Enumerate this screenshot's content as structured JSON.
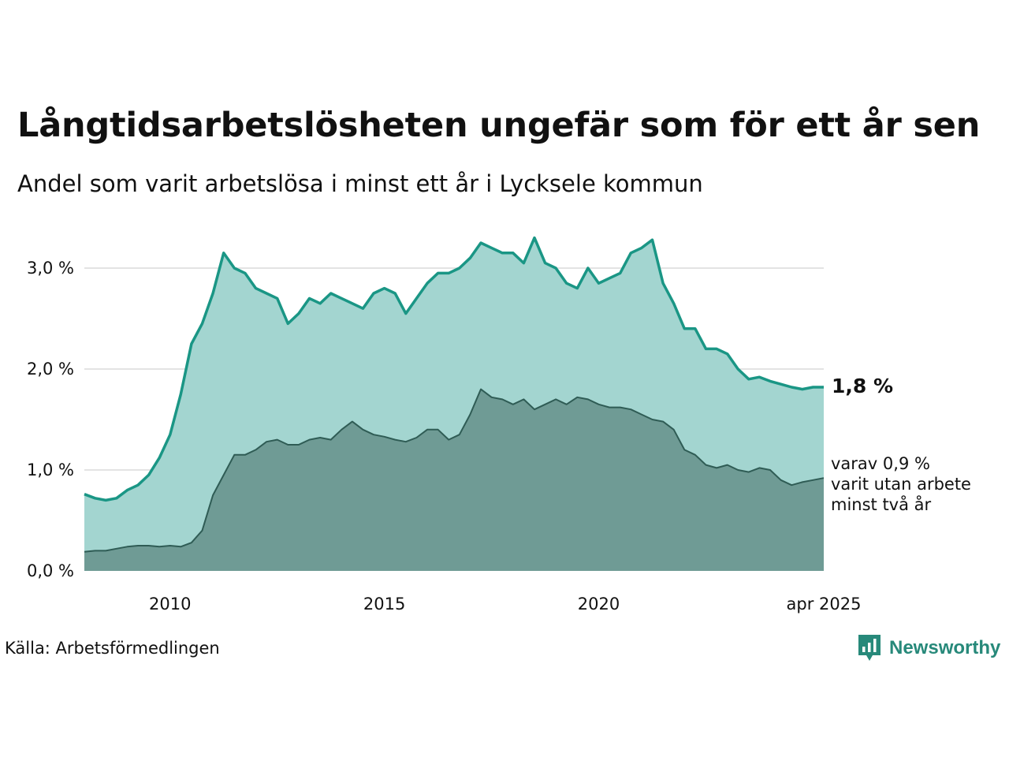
{
  "chart_data": {
    "type": "area",
    "title": "Långtidsarbetslösheten ungefär som för ett år sen",
    "subtitle": "Andel som varit arbetslösa i minst ett år i Lycksele kommun",
    "x_tick_labels": [
      "2010",
      "2015",
      "2020",
      "apr 2025"
    ],
    "y_tick_labels": [
      "0,0 %",
      "1,0 %",
      "2,0 %",
      "3,0 %"
    ],
    "y_ticks": [
      0,
      1,
      2,
      3
    ],
    "ylim": [
      0,
      3.4
    ],
    "x_range": [
      "2008-01",
      "2025-04"
    ],
    "grid": true,
    "unit": "%",
    "series": [
      {
        "key": "total",
        "color_line": "#1a9685",
        "color_fill": "#a3d5d0",
        "points": [
          [
            "2008-01",
            0.76
          ],
          [
            "2008-04",
            0.72
          ],
          [
            "2008-07",
            0.7
          ],
          [
            "2008-10",
            0.72
          ],
          [
            "2009-01",
            0.8
          ],
          [
            "2009-04",
            0.85
          ],
          [
            "2009-07",
            0.95
          ],
          [
            "2009-10",
            1.12
          ],
          [
            "2010-01",
            1.35
          ],
          [
            "2010-04",
            1.75
          ],
          [
            "2010-07",
            2.25
          ],
          [
            "2010-10",
            2.45
          ],
          [
            "2011-01",
            2.75
          ],
          [
            "2011-04",
            3.15
          ],
          [
            "2011-07",
            3.0
          ],
          [
            "2011-10",
            2.95
          ],
          [
            "2012-01",
            2.8
          ],
          [
            "2012-04",
            2.75
          ],
          [
            "2012-07",
            2.7
          ],
          [
            "2012-10",
            2.45
          ],
          [
            "2013-01",
            2.55
          ],
          [
            "2013-04",
            2.7
          ],
          [
            "2013-07",
            2.65
          ],
          [
            "2013-10",
            2.75
          ],
          [
            "2014-01",
            2.7
          ],
          [
            "2014-04",
            2.65
          ],
          [
            "2014-07",
            2.6
          ],
          [
            "2014-10",
            2.75
          ],
          [
            "2015-01",
            2.8
          ],
          [
            "2015-04",
            2.75
          ],
          [
            "2015-07",
            2.55
          ],
          [
            "2015-10",
            2.7
          ],
          [
            "2016-01",
            2.85
          ],
          [
            "2016-04",
            2.95
          ],
          [
            "2016-07",
            2.95
          ],
          [
            "2016-10",
            3.0
          ],
          [
            "2017-01",
            3.1
          ],
          [
            "2017-04",
            3.25
          ],
          [
            "2017-07",
            3.2
          ],
          [
            "2017-10",
            3.15
          ],
          [
            "2018-01",
            3.15
          ],
          [
            "2018-04",
            3.05
          ],
          [
            "2018-07",
            3.3
          ],
          [
            "2018-10",
            3.05
          ],
          [
            "2019-01",
            3.0
          ],
          [
            "2019-04",
            2.85
          ],
          [
            "2019-07",
            2.8
          ],
          [
            "2019-10",
            3.0
          ],
          [
            "2020-01",
            2.85
          ],
          [
            "2020-04",
            2.9
          ],
          [
            "2020-07",
            2.95
          ],
          [
            "2020-10",
            3.15
          ],
          [
            "2021-01",
            3.2
          ],
          [
            "2021-04",
            3.28
          ],
          [
            "2021-07",
            2.85
          ],
          [
            "2021-10",
            2.65
          ],
          [
            "2022-01",
            2.4
          ],
          [
            "2022-04",
            2.4
          ],
          [
            "2022-07",
            2.2
          ],
          [
            "2022-10",
            2.2
          ],
          [
            "2023-01",
            2.15
          ],
          [
            "2023-04",
            2.0
          ],
          [
            "2023-07",
            1.9
          ],
          [
            "2023-10",
            1.92
          ],
          [
            "2024-01",
            1.88
          ],
          [
            "2024-04",
            1.85
          ],
          [
            "2024-07",
            1.82
          ],
          [
            "2024-10",
            1.8
          ],
          [
            "2025-01",
            1.82
          ],
          [
            "2025-04",
            1.82
          ]
        ]
      },
      {
        "key": "two_years",
        "color_line": "#2f5c55",
        "color_fill": "#6f9b95",
        "points": [
          [
            "2008-01",
            0.19
          ],
          [
            "2008-04",
            0.2
          ],
          [
            "2008-07",
            0.2
          ],
          [
            "2008-10",
            0.22
          ],
          [
            "2009-01",
            0.24
          ],
          [
            "2009-04",
            0.25
          ],
          [
            "2009-07",
            0.25
          ],
          [
            "2009-10",
            0.24
          ],
          [
            "2010-01",
            0.25
          ],
          [
            "2010-04",
            0.24
          ],
          [
            "2010-07",
            0.28
          ],
          [
            "2010-10",
            0.4
          ],
          [
            "2011-01",
            0.75
          ],
          [
            "2011-04",
            0.95
          ],
          [
            "2011-07",
            1.15
          ],
          [
            "2011-10",
            1.15
          ],
          [
            "2012-01",
            1.2
          ],
          [
            "2012-04",
            1.28
          ],
          [
            "2012-07",
            1.3
          ],
          [
            "2012-10",
            1.25
          ],
          [
            "2013-01",
            1.25
          ],
          [
            "2013-04",
            1.3
          ],
          [
            "2013-07",
            1.32
          ],
          [
            "2013-10",
            1.3
          ],
          [
            "2014-01",
            1.4
          ],
          [
            "2014-04",
            1.48
          ],
          [
            "2014-07",
            1.4
          ],
          [
            "2014-10",
            1.35
          ],
          [
            "2015-01",
            1.33
          ],
          [
            "2015-04",
            1.3
          ],
          [
            "2015-07",
            1.28
          ],
          [
            "2015-10",
            1.32
          ],
          [
            "2016-01",
            1.4
          ],
          [
            "2016-04",
            1.4
          ],
          [
            "2016-07",
            1.3
          ],
          [
            "2016-10",
            1.35
          ],
          [
            "2017-01",
            1.55
          ],
          [
            "2017-04",
            1.8
          ],
          [
            "2017-07",
            1.72
          ],
          [
            "2017-10",
            1.7
          ],
          [
            "2018-01",
            1.65
          ],
          [
            "2018-04",
            1.7
          ],
          [
            "2018-07",
            1.6
          ],
          [
            "2018-10",
            1.65
          ],
          [
            "2019-01",
            1.7
          ],
          [
            "2019-04",
            1.65
          ],
          [
            "2019-07",
            1.72
          ],
          [
            "2019-10",
            1.7
          ],
          [
            "2020-01",
            1.65
          ],
          [
            "2020-04",
            1.62
          ],
          [
            "2020-07",
            1.62
          ],
          [
            "2020-10",
            1.6
          ],
          [
            "2021-01",
            1.55
          ],
          [
            "2021-04",
            1.5
          ],
          [
            "2021-07",
            1.48
          ],
          [
            "2021-10",
            1.4
          ],
          [
            "2022-01",
            1.2
          ],
          [
            "2022-04",
            1.15
          ],
          [
            "2022-07",
            1.05
          ],
          [
            "2022-10",
            1.02
          ],
          [
            "2023-01",
            1.05
          ],
          [
            "2023-04",
            1.0
          ],
          [
            "2023-07",
            0.98
          ],
          [
            "2023-10",
            1.02
          ],
          [
            "2024-01",
            1.0
          ],
          [
            "2024-04",
            0.9
          ],
          [
            "2024-07",
            0.85
          ],
          [
            "2024-10",
            0.88
          ],
          [
            "2025-01",
            0.9
          ],
          [
            "2025-04",
            0.92
          ]
        ]
      }
    ],
    "end_label": "1,8 %",
    "sub_label_lines": [
      "varav 0,9 %",
      "varit utan arbete",
      "minst två år"
    ]
  },
  "source": "Källa: Arbetsförmedlingen",
  "logo": {
    "text": "Newsworthy",
    "icon": "newsworthy-bar-chart-icon",
    "color": "#27897a"
  }
}
